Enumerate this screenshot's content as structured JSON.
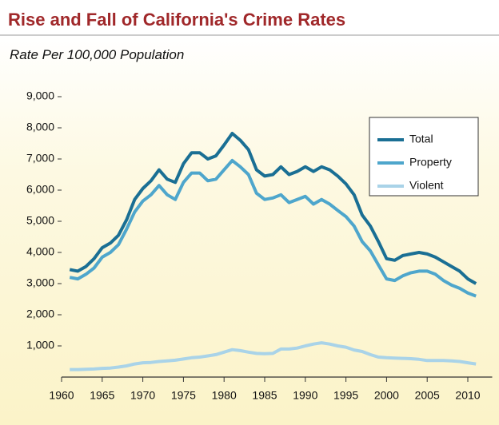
{
  "chart_data": {
    "type": "line",
    "title": "Rise and Fall of California's Crime Rates",
    "subtitle": "Rate Per 100,000 Population",
    "x": [
      1961,
      1962,
      1963,
      1964,
      1965,
      1966,
      1967,
      1968,
      1969,
      1970,
      1971,
      1972,
      1973,
      1974,
      1975,
      1976,
      1977,
      1978,
      1979,
      1980,
      1981,
      1982,
      1983,
      1984,
      1985,
      1986,
      1987,
      1988,
      1989,
      1990,
      1991,
      1992,
      1993,
      1994,
      1995,
      1996,
      1997,
      1998,
      1999,
      2000,
      2001,
      2002,
      2003,
      2004,
      2005,
      2006,
      2007,
      2008,
      2009,
      2010,
      2011
    ],
    "series": [
      {
        "name": "Total",
        "color": "#1a6f94",
        "values": [
          3450,
          3400,
          3550,
          3800,
          4150,
          4300,
          4550,
          5050,
          5700,
          6050,
          6300,
          6650,
          6350,
          6250,
          6850,
          7200,
          7200,
          7000,
          7100,
          7450,
          7820,
          7600,
          7300,
          6650,
          6450,
          6500,
          6750,
          6500,
          6600,
          6750,
          6600,
          6750,
          6650,
          6450,
          6200,
          5850,
          5200,
          4850,
          4350,
          3800,
          3750,
          3900,
          3950,
          4000,
          3950,
          3850,
          3700,
          3550,
          3400,
          3150,
          3000
        ]
      },
      {
        "name": "Property",
        "color": "#4ea6cc",
        "values": [
          3200,
          3150,
          3300,
          3500,
          3850,
          4000,
          4250,
          4750,
          5300,
          5650,
          5850,
          6150,
          5850,
          5700,
          6250,
          6550,
          6550,
          6300,
          6350,
          6650,
          6950,
          6750,
          6500,
          5900,
          5700,
          5750,
          5850,
          5600,
          5700,
          5800,
          5550,
          5700,
          5550,
          5350,
          5150,
          4850,
          4350,
          4050,
          3600,
          3150,
          3100,
          3250,
          3350,
          3400,
          3400,
          3300,
          3100,
          2950,
          2850,
          2700,
          2600
        ]
      },
      {
        "name": "Violent",
        "color": "#a9d3e8",
        "values": [
          240,
          240,
          250,
          260,
          280,
          290,
          320,
          360,
          420,
          460,
          470,
          500,
          520,
          540,
          580,
          620,
          640,
          680,
          720,
          800,
          880,
          850,
          800,
          760,
          750,
          760,
          900,
          900,
          930,
          1000,
          1060,
          1100,
          1060,
          1000,
          960,
          870,
          820,
          720,
          640,
          620,
          610,
          600,
          590,
          570,
          530,
          530,
          530,
          520,
          500,
          460,
          420
        ]
      }
    ],
    "xlim": [
      1960,
      2013
    ],
    "xticks": [
      1960,
      1965,
      1970,
      1975,
      1980,
      1985,
      1990,
      1995,
      2000,
      2005,
      2010
    ],
    "ylim": [
      0,
      9000
    ],
    "yticks": [
      {
        "value": 1000,
        "label": "1,000"
      },
      {
        "value": 2000,
        "label": "2,000"
      },
      {
        "value": 3000,
        "label": "3,000"
      },
      {
        "value": 4000,
        "label": "4,000"
      },
      {
        "value": 5000,
        "label": "5,000"
      },
      {
        "value": 6000,
        "label": "6,000"
      },
      {
        "value": 7000,
        "label": "7,000"
      },
      {
        "value": 8000,
        "label": "8,000"
      },
      {
        "value": 9000,
        "label": "9,000"
      }
    ],
    "grid": false,
    "legend": "upper right"
  }
}
